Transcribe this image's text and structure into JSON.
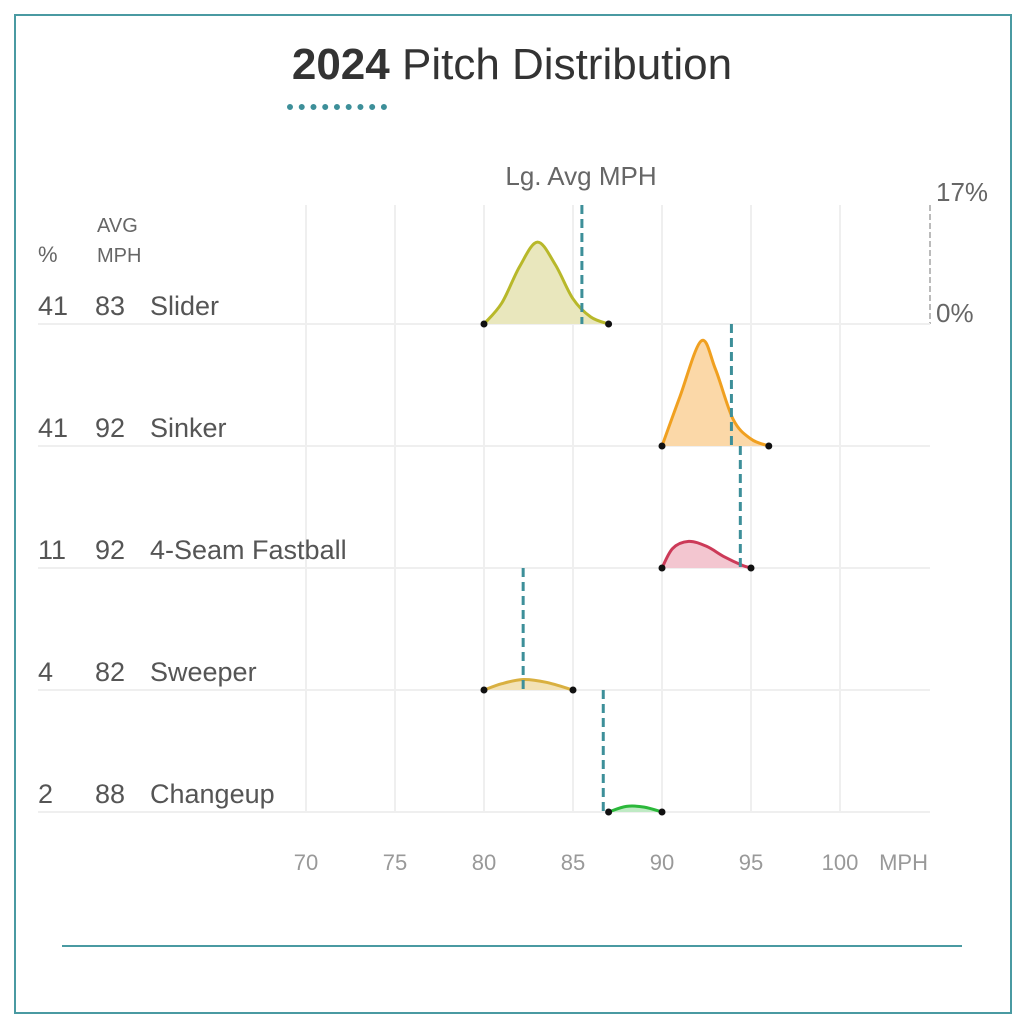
{
  "chart_data": {
    "type": "ridgeline",
    "title_year": "2024",
    "title_rest": "Pitch Distribution",
    "reference_label": "Lg. Avg MPH",
    "col_headers": {
      "pct": "%",
      "avg_line1": "AVG",
      "avg_line2": "MPH"
    },
    "xlabel": "MPH",
    "xlim": [
      65,
      104
    ],
    "xticks": [
      70,
      75,
      80,
      85,
      90,
      95,
      100
    ],
    "scale": {
      "max_label": "17%",
      "min_label": "0%",
      "max_pct": 17
    },
    "series": [
      {
        "name": "Slider",
        "pct": "41",
        "avg": "83",
        "lg_avg": 85.5,
        "color": "#b8b82a",
        "fill": "#e9e7bd",
        "density": [
          [
            80,
            0
          ],
          [
            81,
            3
          ],
          [
            82,
            8.2
          ],
          [
            83,
            11.7
          ],
          [
            84,
            8.5
          ],
          [
            85,
            3.6
          ],
          [
            86,
            1
          ],
          [
            87,
            0
          ]
        ]
      },
      {
        "name": "Sinker",
        "pct": "41",
        "avg": "92",
        "lg_avg": 93.9,
        "color": "#f0a020",
        "fill": "#fbd8a8",
        "density": [
          [
            90,
            0
          ],
          [
            91,
            7
          ],
          [
            92.2,
            15
          ],
          [
            93,
            11
          ],
          [
            94,
            3.8
          ],
          [
            95,
            1
          ],
          [
            96,
            0
          ]
        ]
      },
      {
        "name": "4-Seam Fastball",
        "pct": "11",
        "avg": "92",
        "lg_avg": 94.4,
        "color": "#cc3a58",
        "fill": "#f3c6d0",
        "density": [
          [
            90,
            0
          ],
          [
            90.6,
            2.8
          ],
          [
            91.5,
            3.8
          ],
          [
            92.5,
            3.1
          ],
          [
            93.5,
            1.6
          ],
          [
            94.5,
            0.4
          ],
          [
            95,
            0
          ]
        ]
      },
      {
        "name": "Sweeper",
        "pct": "4",
        "avg": "82",
        "lg_avg": 82.2,
        "color": "#d9b040",
        "fill": "#f3e2b6",
        "density": [
          [
            80,
            0
          ],
          [
            81,
            0.9
          ],
          [
            82.2,
            1.5
          ],
          [
            83.5,
            1.1
          ],
          [
            85,
            0
          ]
        ]
      },
      {
        "name": "Changeup",
        "pct": "2",
        "avg": "88",
        "lg_avg": 86.7,
        "color": "#2bb83a",
        "fill": "#bfeac4",
        "density": [
          [
            87,
            0
          ],
          [
            88,
            0.8
          ],
          [
            89,
            0.7
          ],
          [
            90,
            0
          ]
        ]
      }
    ]
  }
}
